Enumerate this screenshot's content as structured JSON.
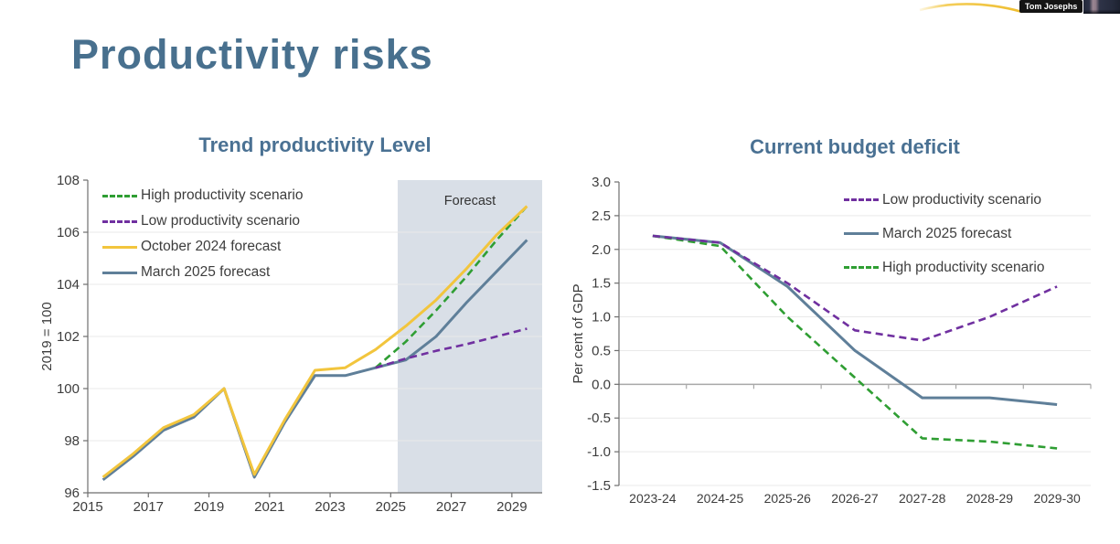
{
  "participant": {
    "name": "Tom Josephs"
  },
  "slide": {
    "title": "Productivity risks"
  },
  "chart_data": [
    {
      "type": "line",
      "title": "Trend productivity Level",
      "ylabel": "2019 = 100",
      "ylim": [
        96,
        108
      ],
      "grid": "horizontal-light",
      "legend_position": "inside-top-left",
      "yticks": [
        {
          "v": 96,
          "label": "96",
          "grid": false
        },
        {
          "v": 98,
          "label": "98",
          "grid": true
        },
        {
          "v": 100,
          "label": "100",
          "grid": true
        },
        {
          "v": 102,
          "label": "102",
          "grid": true
        },
        {
          "v": 104,
          "label": "104",
          "grid": true
        },
        {
          "v": 106,
          "label": "106",
          "grid": true
        },
        {
          "v": 108,
          "label": "108",
          "grid": false
        }
      ],
      "categories": [
        "2015",
        "2016",
        "2017",
        "2018",
        "2019",
        "2020",
        "2021",
        "2022",
        "2023",
        "2024",
        "2025",
        "2026",
        "2027",
        "2028",
        "2029"
      ],
      "xtick_labels": [
        {
          "index": 0,
          "label": "2015"
        },
        {
          "index": 2,
          "label": "2017"
        },
        {
          "index": 4,
          "label": "2019"
        },
        {
          "index": 6,
          "label": "2021"
        },
        {
          "index": 8,
          "label": "2023"
        },
        {
          "index": 10,
          "label": "2025"
        },
        {
          "index": 12,
          "label": "2027"
        },
        {
          "index": 14,
          "label": "2029"
        }
      ],
      "forecast_shade": {
        "label": "Forecast",
        "start_fraction": 0.682,
        "color": "#d9dfe7"
      },
      "series": [
        {
          "name": "High productivity scenario",
          "color": "#2f9e33",
          "dashed": true,
          "start_index": 9,
          "values": [
            100.8,
            101.8,
            103.0,
            104.3,
            105.7,
            107.0
          ]
        },
        {
          "name": "Low productivity scenario",
          "color": "#7030a0",
          "dashed": true,
          "start_index": 9,
          "values": [
            100.8,
            101.15,
            101.45,
            101.7,
            102.0,
            102.3
          ]
        },
        {
          "name": "October 2024 forecast",
          "color": "#f2c53d",
          "dashed": false,
          "start_index": 0,
          "values": [
            96.6,
            97.5,
            98.5,
            99.0,
            100.0,
            96.7,
            98.8,
            100.7,
            100.8,
            101.5,
            102.4,
            103.4,
            104.6,
            105.9,
            107.0
          ]
        },
        {
          "name": "March 2025 forecast",
          "color": "#5f7f99",
          "dashed": false,
          "start_index": 0,
          "values": [
            96.5,
            97.4,
            98.4,
            98.9,
            100.0,
            96.6,
            98.7,
            100.5,
            100.5,
            100.8,
            101.1,
            102.0,
            103.3,
            104.5,
            105.7
          ]
        }
      ]
    },
    {
      "type": "line",
      "title": "Current budget deficit",
      "ylabel": "Per cent of GDP",
      "ylim": [
        -1.5,
        3.0
      ],
      "grid": "horizontal-light-with-dark-zero",
      "legend_position": "inside-top-right",
      "yticks": [
        {
          "v": -1.5,
          "label": "-1.5",
          "grid": true
        },
        {
          "v": -1.0,
          "label": "-1.0",
          "grid": true
        },
        {
          "v": -0.5,
          "label": "-0.5",
          "grid": true
        },
        {
          "v": 0.0,
          "label": "0.0",
          "grid": true,
          "dark": true
        },
        {
          "v": 0.5,
          "label": "0.5",
          "grid": true
        },
        {
          "v": 1.0,
          "label": "1.0",
          "grid": true
        },
        {
          "v": 1.5,
          "label": "1.5",
          "grid": true
        },
        {
          "v": 2.0,
          "label": "2.0",
          "grid": true
        },
        {
          "v": 2.5,
          "label": "2.5",
          "grid": true
        },
        {
          "v": 3.0,
          "label": "3.0",
          "grid": false
        }
      ],
      "categories": [
        "2023-24",
        "2024-25",
        "2025-26",
        "2026-27",
        "2027-28",
        "2028-29",
        "2029-30"
      ],
      "series": [
        {
          "name": "Low productivity scenario",
          "color": "#7030a0",
          "dashed": true,
          "start_index": 0,
          "values": [
            2.2,
            2.1,
            1.5,
            0.8,
            0.65,
            1.0,
            1.45
          ]
        },
        {
          "name": "March 2025 forecast",
          "color": "#5f7f99",
          "dashed": false,
          "start_index": 0,
          "values": [
            2.2,
            2.1,
            1.45,
            0.5,
            -0.2,
            -0.2,
            -0.3
          ]
        },
        {
          "name": "High productivity scenario",
          "color": "#2f9e33",
          "dashed": true,
          "start_index": 0,
          "values": [
            2.2,
            2.05,
            1.0,
            0.1,
            -0.8,
            -0.85,
            -0.95
          ]
        }
      ]
    }
  ]
}
